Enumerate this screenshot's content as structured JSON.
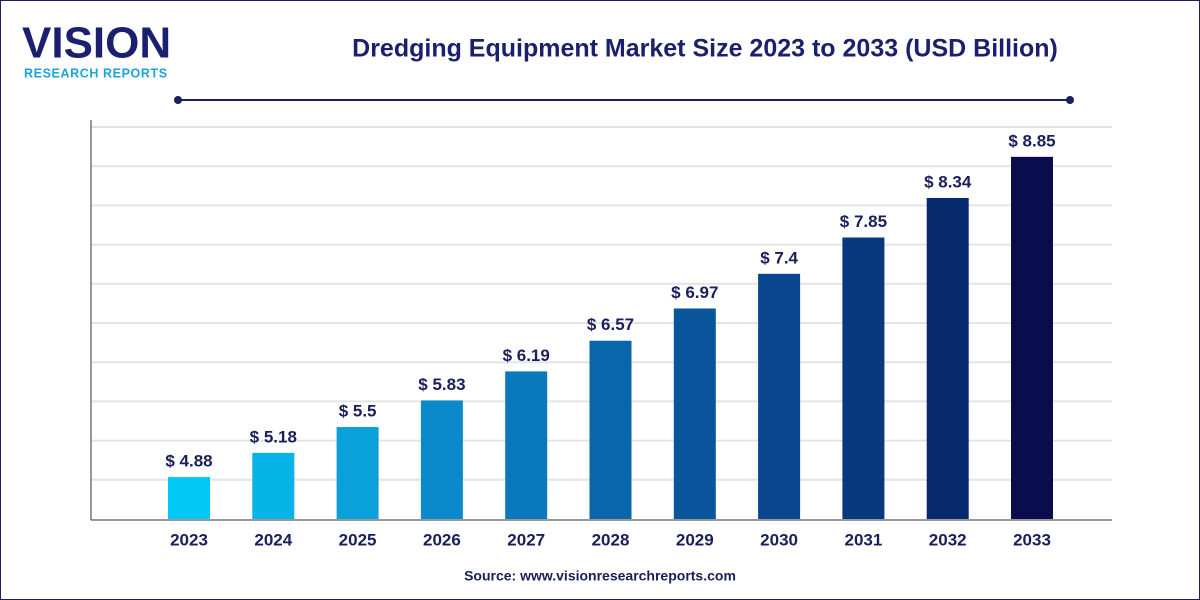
{
  "logo": {
    "name": "VISION",
    "tagline": "RESEARCH REPORTS"
  },
  "chart_data": {
    "type": "bar",
    "title": "Dredging Equipment Market Size 2023 to 2033 (USD Billion)",
    "categories": [
      "2023",
      "2024",
      "2025",
      "2026",
      "2027",
      "2028",
      "2029",
      "2030",
      "2031",
      "2032",
      "2033"
    ],
    "values": [
      4.88,
      5.18,
      5.5,
      5.83,
      6.19,
      6.57,
      6.97,
      7.4,
      7.85,
      8.34,
      8.85
    ],
    "value_labels": [
      "$ 4.88",
      "$ 5.18",
      "$ 5.5",
      "$ 5.83",
      "$ 6.19",
      "$ 6.57",
      "$ 6.97",
      "$ 7.4",
      "$ 7.85",
      "$ 8.34",
      "$ 8.85"
    ],
    "colors": [
      "#00c8f7",
      "#06b4e8",
      "#0aa0da",
      "#0b8acb",
      "#0a78bc",
      "#0a66ab",
      "#09569c",
      "#09468d",
      "#08387e",
      "#072a6e",
      "#0a0d4d"
    ],
    "ylim": [
      4.36,
      9.22
    ],
    "source": "Source: www.visionresearchreports.com"
  }
}
